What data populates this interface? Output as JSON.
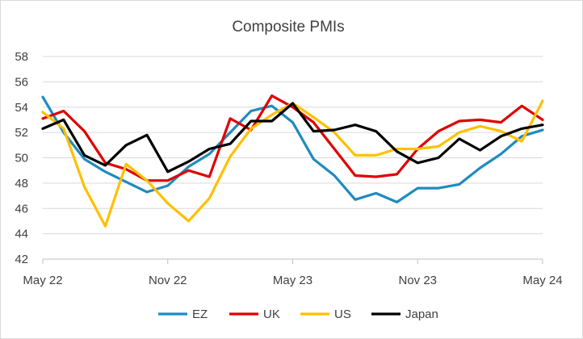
{
  "chart_data": {
    "type": "line",
    "title": "Composite PMIs",
    "xlabel": "",
    "ylabel": "",
    "ylim": [
      42,
      58
    ],
    "y_ticks": [
      42,
      44,
      46,
      48,
      50,
      52,
      54,
      56,
      58
    ],
    "x_tick_labels": [
      "May 22",
      "Nov 22",
      "May 23",
      "Nov 23",
      "May 24"
    ],
    "grid": "horizontal",
    "legend_position": "bottom",
    "categories": [
      "May 22",
      "Jun 22",
      "Jul 22",
      "Aug 22",
      "Sep 22",
      "Oct 22",
      "Nov 22",
      "Dec 22",
      "Jan 23",
      "Feb 23",
      "Mar 23",
      "Apr 23",
      "May 23",
      "Jun 23",
      "Jul 23",
      "Aug 23",
      "Sep 23",
      "Oct 23",
      "Nov 23",
      "Dec 23",
      "Jan 24",
      "Feb 24",
      "Mar 24",
      "Apr 24",
      "May 24"
    ],
    "series": [
      {
        "name": "EZ",
        "color": "#1f8bbf",
        "values": [
          54.8,
          52.0,
          49.9,
          48.9,
          48.1,
          47.3,
          47.8,
          49.3,
          50.3,
          52.0,
          53.7,
          54.1,
          52.8,
          49.9,
          48.6,
          46.7,
          47.2,
          46.5,
          47.6,
          47.6,
          47.9,
          49.2,
          50.3,
          51.7,
          52.2
        ]
      },
      {
        "name": "UK",
        "color": "#e00000",
        "values": [
          53.1,
          53.7,
          52.1,
          49.6,
          49.1,
          48.2,
          48.2,
          49.0,
          48.5,
          53.1,
          52.2,
          54.9,
          54.0,
          52.8,
          50.7,
          48.6,
          48.5,
          48.7,
          50.7,
          52.1,
          52.9,
          53.0,
          52.8,
          54.1,
          53.0
        ]
      },
      {
        "name": "US",
        "color": "#ffc000",
        "values": [
          53.6,
          52.3,
          47.7,
          44.6,
          49.5,
          48.2,
          46.4,
          45.0,
          46.8,
          50.1,
          52.3,
          53.4,
          54.3,
          53.2,
          52.0,
          50.2,
          50.2,
          50.7,
          50.7,
          50.9,
          52.0,
          52.5,
          52.1,
          51.3,
          54.5
        ]
      },
      {
        "name": "Japan",
        "color": "#000000",
        "values": [
          52.3,
          53.0,
          50.2,
          49.4,
          51.0,
          51.8,
          48.9,
          49.7,
          50.7,
          51.1,
          52.9,
          52.9,
          54.3,
          52.1,
          52.2,
          52.6,
          52.1,
          50.5,
          49.6,
          50.0,
          51.5,
          50.6,
          51.7,
          52.3,
          52.6
        ]
      }
    ]
  }
}
